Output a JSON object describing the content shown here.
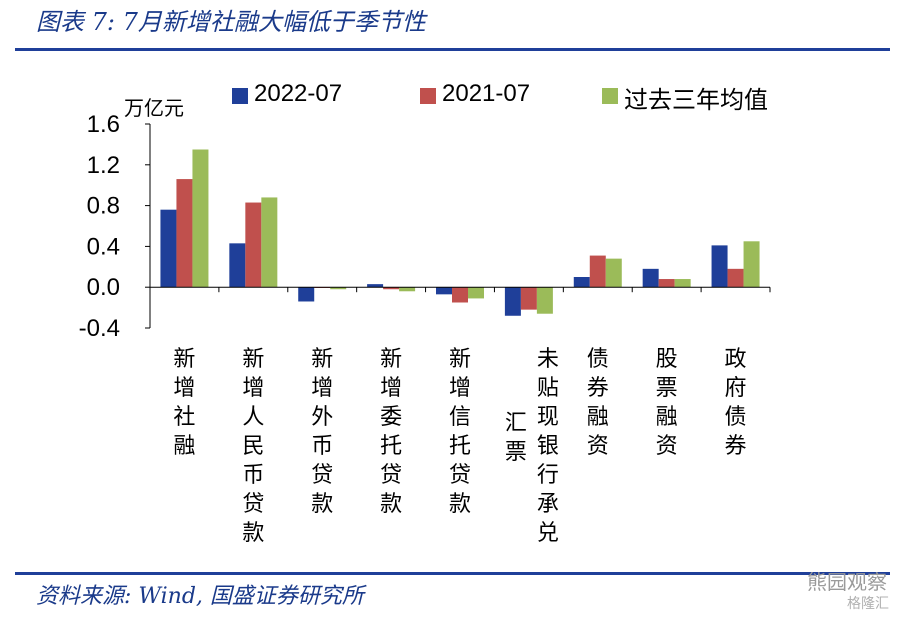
{
  "header": {
    "title": "图表 7:  7月新增社融大幅低于季节性"
  },
  "footer": {
    "source": "资料来源: Wind, 国盛证券研究所"
  },
  "watermark": {
    "line1": "熊园观察",
    "line2": "格隆汇"
  },
  "colors": {
    "series_2022": "#1f3f99",
    "series_2021": "#c0504d",
    "series_avg": "#9bbb59",
    "rule": "#1f3f99"
  },
  "chart_data": {
    "type": "bar",
    "unit_label": "万亿元",
    "ylim": [
      -0.4,
      1.6
    ],
    "yticks": [
      "1.6",
      "1.2",
      "0.8",
      "0.4",
      "0.0",
      "-0.4"
    ],
    "ytick_values": [
      1.6,
      1.2,
      0.8,
      0.4,
      0.0,
      -0.4
    ],
    "legend_position": "top",
    "categories": [
      "新增社融",
      "新增人民币贷款",
      "新增外币贷款",
      "新增委托贷款",
      "新增信托贷款",
      "未贴现银行承兑汇票",
      "债券融资",
      "股票融资",
      "政府债券"
    ],
    "category_lines": [
      [
        "新增社融"
      ],
      [
        "新增人民币贷款"
      ],
      [
        "新增外币贷款"
      ],
      [
        "新增委托贷款"
      ],
      [
        "新增信托贷款"
      ],
      [
        "未贴现银行承兑",
        "汇票"
      ],
      [
        "债券融资"
      ],
      [
        "股票融资"
      ],
      [
        "政府债券"
      ]
    ],
    "series": [
      {
        "name": "2022-07",
        "values": [
          0.76,
          0.43,
          -0.14,
          0.03,
          -0.07,
          -0.28,
          0.1,
          0.18,
          0.41
        ]
      },
      {
        "name": "2021-07",
        "values": [
          1.06,
          0.83,
          0.0,
          -0.02,
          -0.15,
          -0.22,
          0.31,
          0.08,
          0.18
        ]
      },
      {
        "name": "过去三年均值",
        "values": [
          1.35,
          0.88,
          -0.02,
          -0.04,
          -0.11,
          -0.26,
          0.28,
          0.08,
          0.45
        ]
      }
    ]
  }
}
